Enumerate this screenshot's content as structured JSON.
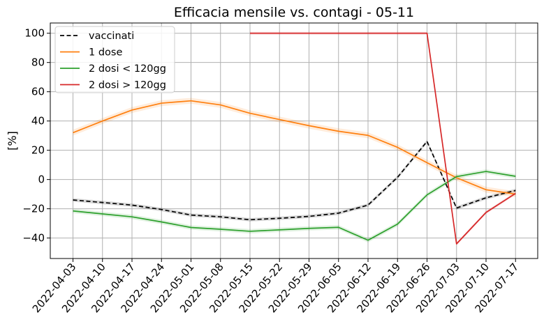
{
  "chart_data": {
    "type": "line",
    "title": "Efficacia mensile vs. contagi - 05-11",
    "xlabel": "",
    "ylabel": "[%]",
    "ylim": [
      -54,
      107
    ],
    "yticks": [
      -40,
      -20,
      0,
      20,
      40,
      60,
      80,
      100
    ],
    "ytick_labels": [
      "−40",
      "−20",
      "0",
      "20",
      "40",
      "60",
      "80",
      "100"
    ],
    "grid": true,
    "legend_position": "top-left",
    "categories": [
      "2022-04-03",
      "2022-04-10",
      "2022-04-17",
      "2022-04-24",
      "2022-05-01",
      "2022-05-08",
      "2022-05-15",
      "2022-05-22",
      "2022-05-29",
      "2022-06-05",
      "2022-06-12",
      "2022-06-19",
      "2022-06-26",
      "2022-07-03",
      "2022-07-10",
      "2022-07-17"
    ],
    "series": [
      {
        "name": "vaccinati",
        "color": "#000000",
        "dashed": true,
        "band": 1.2,
        "values": [
          -14,
          -15.7,
          -17.5,
          -20.5,
          -24.3,
          -25.5,
          -27.5,
          -26.5,
          -25.2,
          -23,
          -17.5,
          1.5,
          26,
          -19.5,
          -12.5,
          -7.5
        ]
      },
      {
        "name": "1 dose",
        "color": "#ff7f0e",
        "dashed": false,
        "band": 2.0,
        "values": [
          32,
          40,
          47.5,
          52.2,
          53.8,
          51,
          45.3,
          41,
          36.8,
          33,
          30.2,
          22,
          11.5,
          1.2,
          -7,
          -10
        ]
      },
      {
        "name": "2 dosi < 120gg",
        "color": "#2ca02c",
        "dashed": false,
        "band": 1.5,
        "values": [
          -21.5,
          -23.5,
          -25.5,
          -29,
          -32.8,
          -34,
          -35.4,
          -34.4,
          -33.4,
          -32.7,
          -41.5,
          -30.5,
          -10.5,
          2,
          5.5,
          2.2
        ]
      },
      {
        "name": "2 dosi > 120gg",
        "color": "#d62728",
        "dashed": false,
        "band": 1.0,
        "values": [
          null,
          null,
          null,
          null,
          null,
          null,
          100,
          100,
          100,
          100,
          100,
          100,
          100,
          -44,
          -22.5,
          -9.5
        ]
      }
    ]
  }
}
